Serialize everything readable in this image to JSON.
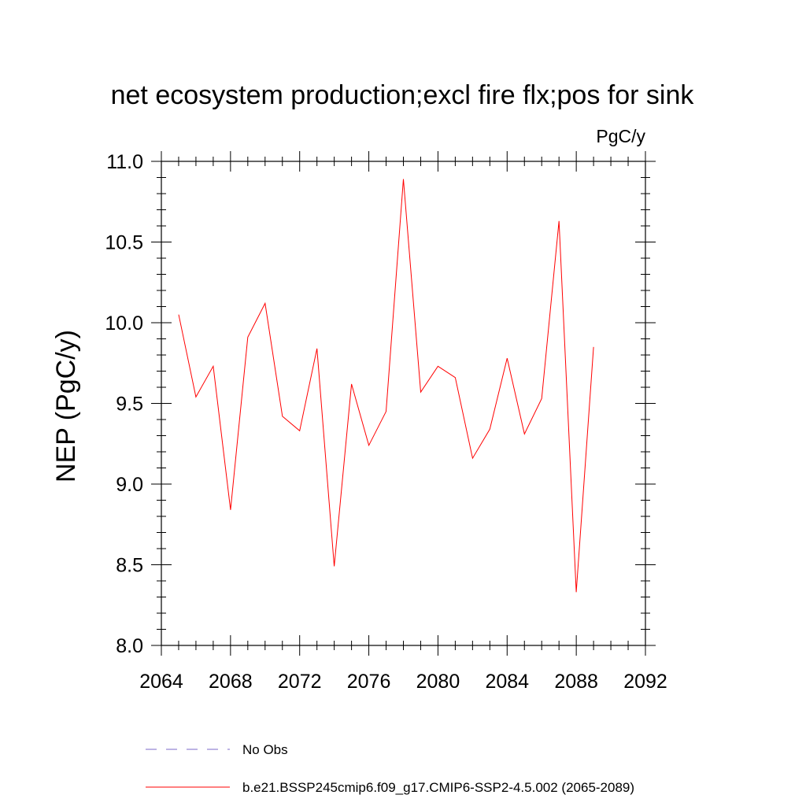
{
  "chart_data": {
    "type": "line",
    "title": "net ecosystem production;excl fire flx;pos for sink",
    "units_label": "PgC/y",
    "xlabel": "",
    "ylabel": "NEP  (PgC/y)",
    "xlim": [
      2064,
      2092
    ],
    "ylim": [
      8.0,
      11.0
    ],
    "x_ticks": [
      2064,
      2068,
      2072,
      2076,
      2080,
      2084,
      2088,
      2092
    ],
    "x_tick_labels": [
      "2064",
      "2068",
      "2072",
      "2076",
      "2080",
      "2084",
      "2088",
      "2092"
    ],
    "y_ticks": [
      8.0,
      8.5,
      9.0,
      9.5,
      10.0,
      10.5,
      11.0
    ],
    "y_tick_labels": [
      "8.0",
      "8.5",
      "9.0",
      "9.5",
      "10.0",
      "10.5",
      "11.0"
    ],
    "grid": false,
    "legend_position": "bottom",
    "series": [
      {
        "name": "b.e21.BSSP245cmip6.f09_g17.CMIP6-SSP2-4.5.002 (2065-2089)",
        "color": "#ff0000",
        "style": "solid",
        "x": [
          2065,
          2066,
          2067,
          2068,
          2069,
          2070,
          2071,
          2072,
          2073,
          2074,
          2075,
          2076,
          2077,
          2078,
          2079,
          2080,
          2081,
          2082,
          2083,
          2084,
          2085,
          2086,
          2087,
          2088,
          2089
        ],
        "y": [
          10.05,
          9.54,
          9.73,
          8.84,
          9.91,
          10.12,
          9.42,
          9.33,
          9.84,
          8.49,
          9.62,
          9.24,
          9.45,
          10.89,
          9.57,
          9.73,
          9.66,
          9.16,
          9.34,
          9.78,
          9.31,
          9.53,
          10.63,
          8.33,
          9.85
        ]
      }
    ],
    "legend": [
      {
        "label": "No Obs",
        "color": "#7b68c8",
        "style": "dashed"
      },
      {
        "label": "b.e21.BSSP245cmip6.f09_g17.CMIP6-SSP2-4.5.002 (2065-2089)",
        "color": "#ff0000",
        "style": "solid"
      }
    ]
  }
}
